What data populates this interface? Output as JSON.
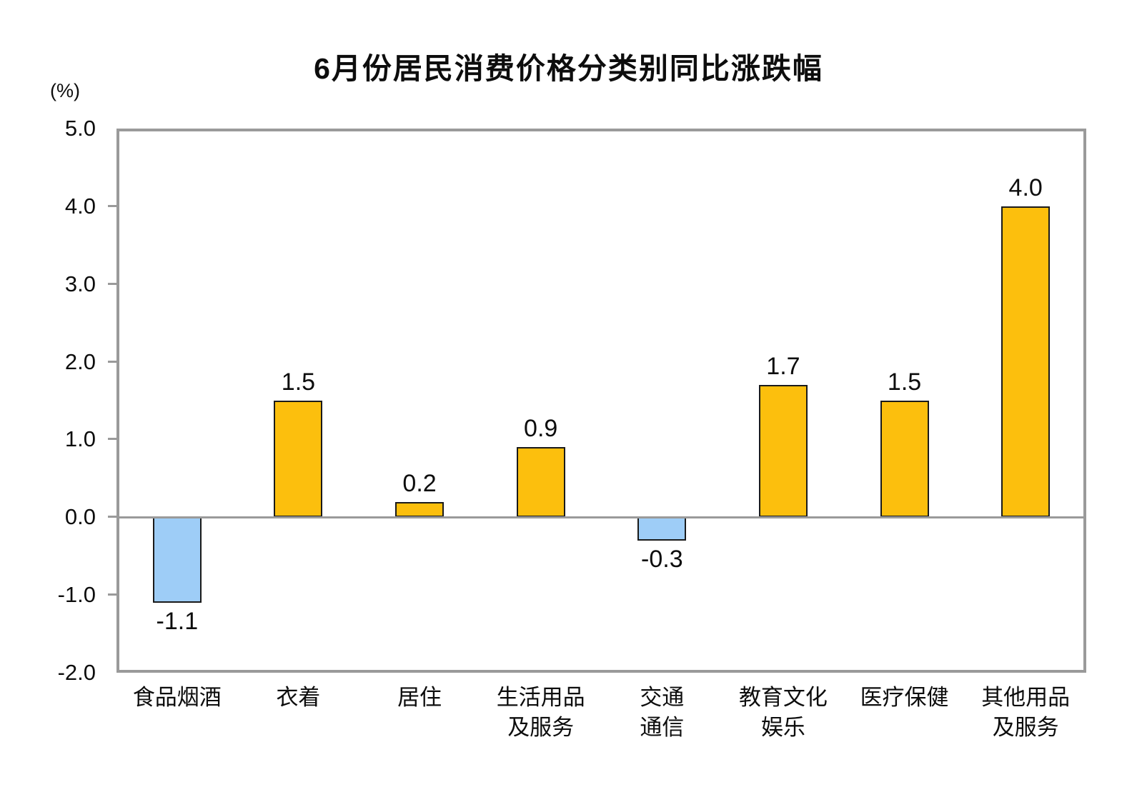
{
  "title": "6月份居民消费价格分类别同比涨跌幅",
  "y_axis_unit_label": "(%)",
  "colors": {
    "positive_bar": "#FCBF0D",
    "negative_bar": "#9ECDF7",
    "bar_border": "#1a1a1a",
    "axis_frame": "#9a9a9a",
    "text": "#0d0d0d"
  },
  "chart_data": {
    "type": "bar",
    "title": "6月份居民消费价格分类别同比涨跌幅",
    "ylabel": "(%)",
    "categories": [
      "食品烟酒",
      "衣着",
      "居住",
      "生活用品\n及服务",
      "交通\n通信",
      "教育文化\n娱乐",
      "医疗保健",
      "其他用品\n及服务"
    ],
    "values": [
      -1.1,
      1.5,
      0.2,
      0.9,
      -0.3,
      1.7,
      1.5,
      4.0
    ],
    "data_labels": [
      "-1.1",
      "1.5",
      "0.2",
      "0.9",
      "-0.3",
      "1.7",
      "1.5",
      "4.0"
    ],
    "ylim": [
      -2.0,
      5.0
    ],
    "yticks": [
      5.0,
      4.0,
      3.0,
      2.0,
      1.0,
      0.0,
      -1.0,
      -2.0
    ],
    "ytick_labels": [
      "5.0",
      "4.0",
      "3.0",
      "2.0",
      "1.0",
      "0.0",
      "-1.0",
      "-2.0"
    ],
    "grid": false,
    "legend_position": "none",
    "series_color_rule": "positive=orange, negative=light-blue"
  }
}
